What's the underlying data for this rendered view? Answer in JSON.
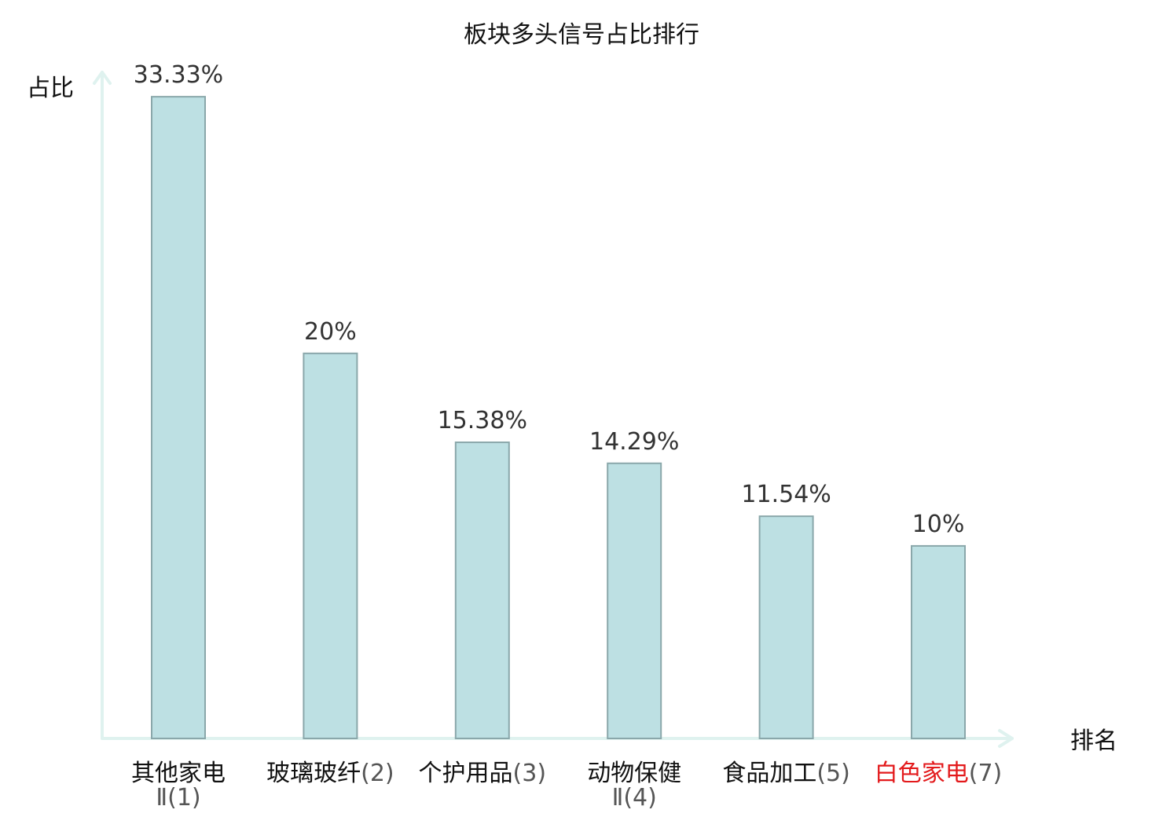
{
  "chart_data": {
    "type": "bar",
    "title": "板块多头信号占比排行",
    "ylabel": "占比",
    "xlabel": "排名",
    "ylim": [
      0,
      34.6
    ],
    "grid": false,
    "legend": "none",
    "categories": [
      {
        "name": "其他家电",
        "rank": "Ⅱ(1)",
        "highlight": false
      },
      {
        "name": "玻璃玻纤",
        "rank": "(2)",
        "highlight": false
      },
      {
        "name": "个护用品",
        "rank": "(3)",
        "highlight": false
      },
      {
        "name": "动物保健",
        "rank": "Ⅱ(4)",
        "highlight": false
      },
      {
        "name": "食品加工",
        "rank": "(5)",
        "highlight": false
      },
      {
        "name": "白色家电",
        "rank": "(7)",
        "highlight": true
      }
    ],
    "values": [
      33.33,
      20,
      15.38,
      14.29,
      11.54,
      10
    ],
    "value_labels": [
      "33.33%",
      "20%",
      "15.38%",
      "14.29%",
      "11.54%",
      "10%"
    ]
  },
  "colors": {
    "bar_fill": "#bde0e3",
    "bar_stroke": "#8aa7aa",
    "axis": "#dff2ef",
    "highlight_text": "#e31a1c",
    "normal_text": "#111111"
  }
}
